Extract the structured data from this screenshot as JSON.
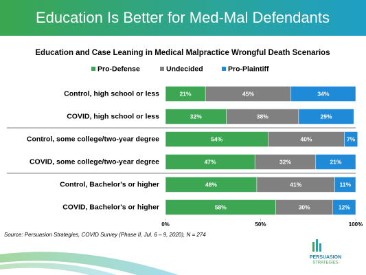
{
  "slide_title": "Education Is Better for Med-Mal Defendants",
  "source": "Source: Persuasion Strategies, COVID Survey (Phase II, Jul. 6 – 9, 2020), N = 274",
  "logo": {
    "line1": "PERSUASION",
    "line2": "STRATEGIES"
  },
  "chart_data": {
    "type": "stacked_bar_horizontal",
    "title": "Education and Case Leaning in Medical Malpractice Wrongful Death Scenarios",
    "categories": [
      "Control, high school or less",
      "COVID, high school or less",
      "Control, some college/two-year degree",
      "COVID, some college/two-year degree",
      "Control, Bachelor's or higher",
      "COVID, Bachelor's or higher"
    ],
    "series": [
      {
        "name": "Pro-Defense",
        "color": "#3da653",
        "values": [
          21,
          32,
          54,
          47,
          48,
          58
        ],
        "value_labels": [
          "21%",
          "32%",
          "54%",
          "47%",
          "48%",
          "58%"
        ]
      },
      {
        "name": "Undecided",
        "color": "#808080",
        "values": [
          45,
          38,
          40,
          32,
          41,
          30
        ],
        "value_labels": [
          "45%",
          "38%",
          "40%",
          "32%",
          "41%",
          "30%"
        ]
      },
      {
        "name": "Pro-Plaintiff",
        "color": "#1f8bd8",
        "values": [
          34,
          29,
          7,
          21,
          11,
          12
        ],
        "value_labels": [
          "34%",
          "29%",
          "7%",
          "21%",
          "11%",
          "12%"
        ]
      }
    ],
    "xlim": [
      0,
      100
    ],
    "xticks": [
      {
        "value": 0,
        "label": "0%"
      },
      {
        "value": 50,
        "label": "50%"
      },
      {
        "value": 100,
        "label": "100%"
      }
    ],
    "legend": "top"
  }
}
